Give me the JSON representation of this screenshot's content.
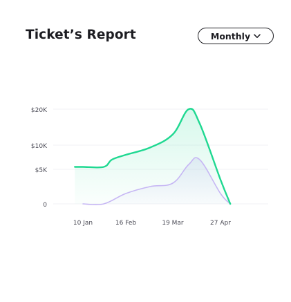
{
  "card": {
    "title": "Ticket’s Report",
    "period_select": {
      "selected": "Monthly",
      "icon": "chevron-down-icon"
    }
  },
  "chart_data": {
    "type": "area",
    "y_tick_labels": [
      "$20K",
      "$10K",
      "$5K",
      "0"
    ],
    "x_tick_labels": [
      "10 Jan",
      "16 Feb",
      "19 Mar",
      "27 Apr"
    ],
    "ylim": [
      0,
      20000
    ],
    "grid": true,
    "series": [
      {
        "color": "#1fd891",
        "x": [
          "3 Jan",
          "10 Jan",
          "28 Jan",
          "4 Feb",
          "16 Feb",
          "4 Mar",
          "19 Mar",
          "1 Apr",
          "10 Apr",
          "27 Apr",
          "5 May"
        ],
        "values": [
          5500,
          5500,
          5500,
          7000,
          8000,
          9500,
          13000,
          20000,
          16000,
          3500,
          0
        ]
      },
      {
        "color": "#c6b6f4",
        "x": [
          "10 Jan",
          "28 Jan",
          "16 Feb",
          "4 Mar",
          "19 Mar",
          "1 Apr",
          "10 Apr",
          "27 Apr",
          "5 May"
        ],
        "values": [
          0,
          0,
          1500,
          2500,
          3000,
          6000,
          7000,
          1500,
          0
        ]
      }
    ]
  }
}
